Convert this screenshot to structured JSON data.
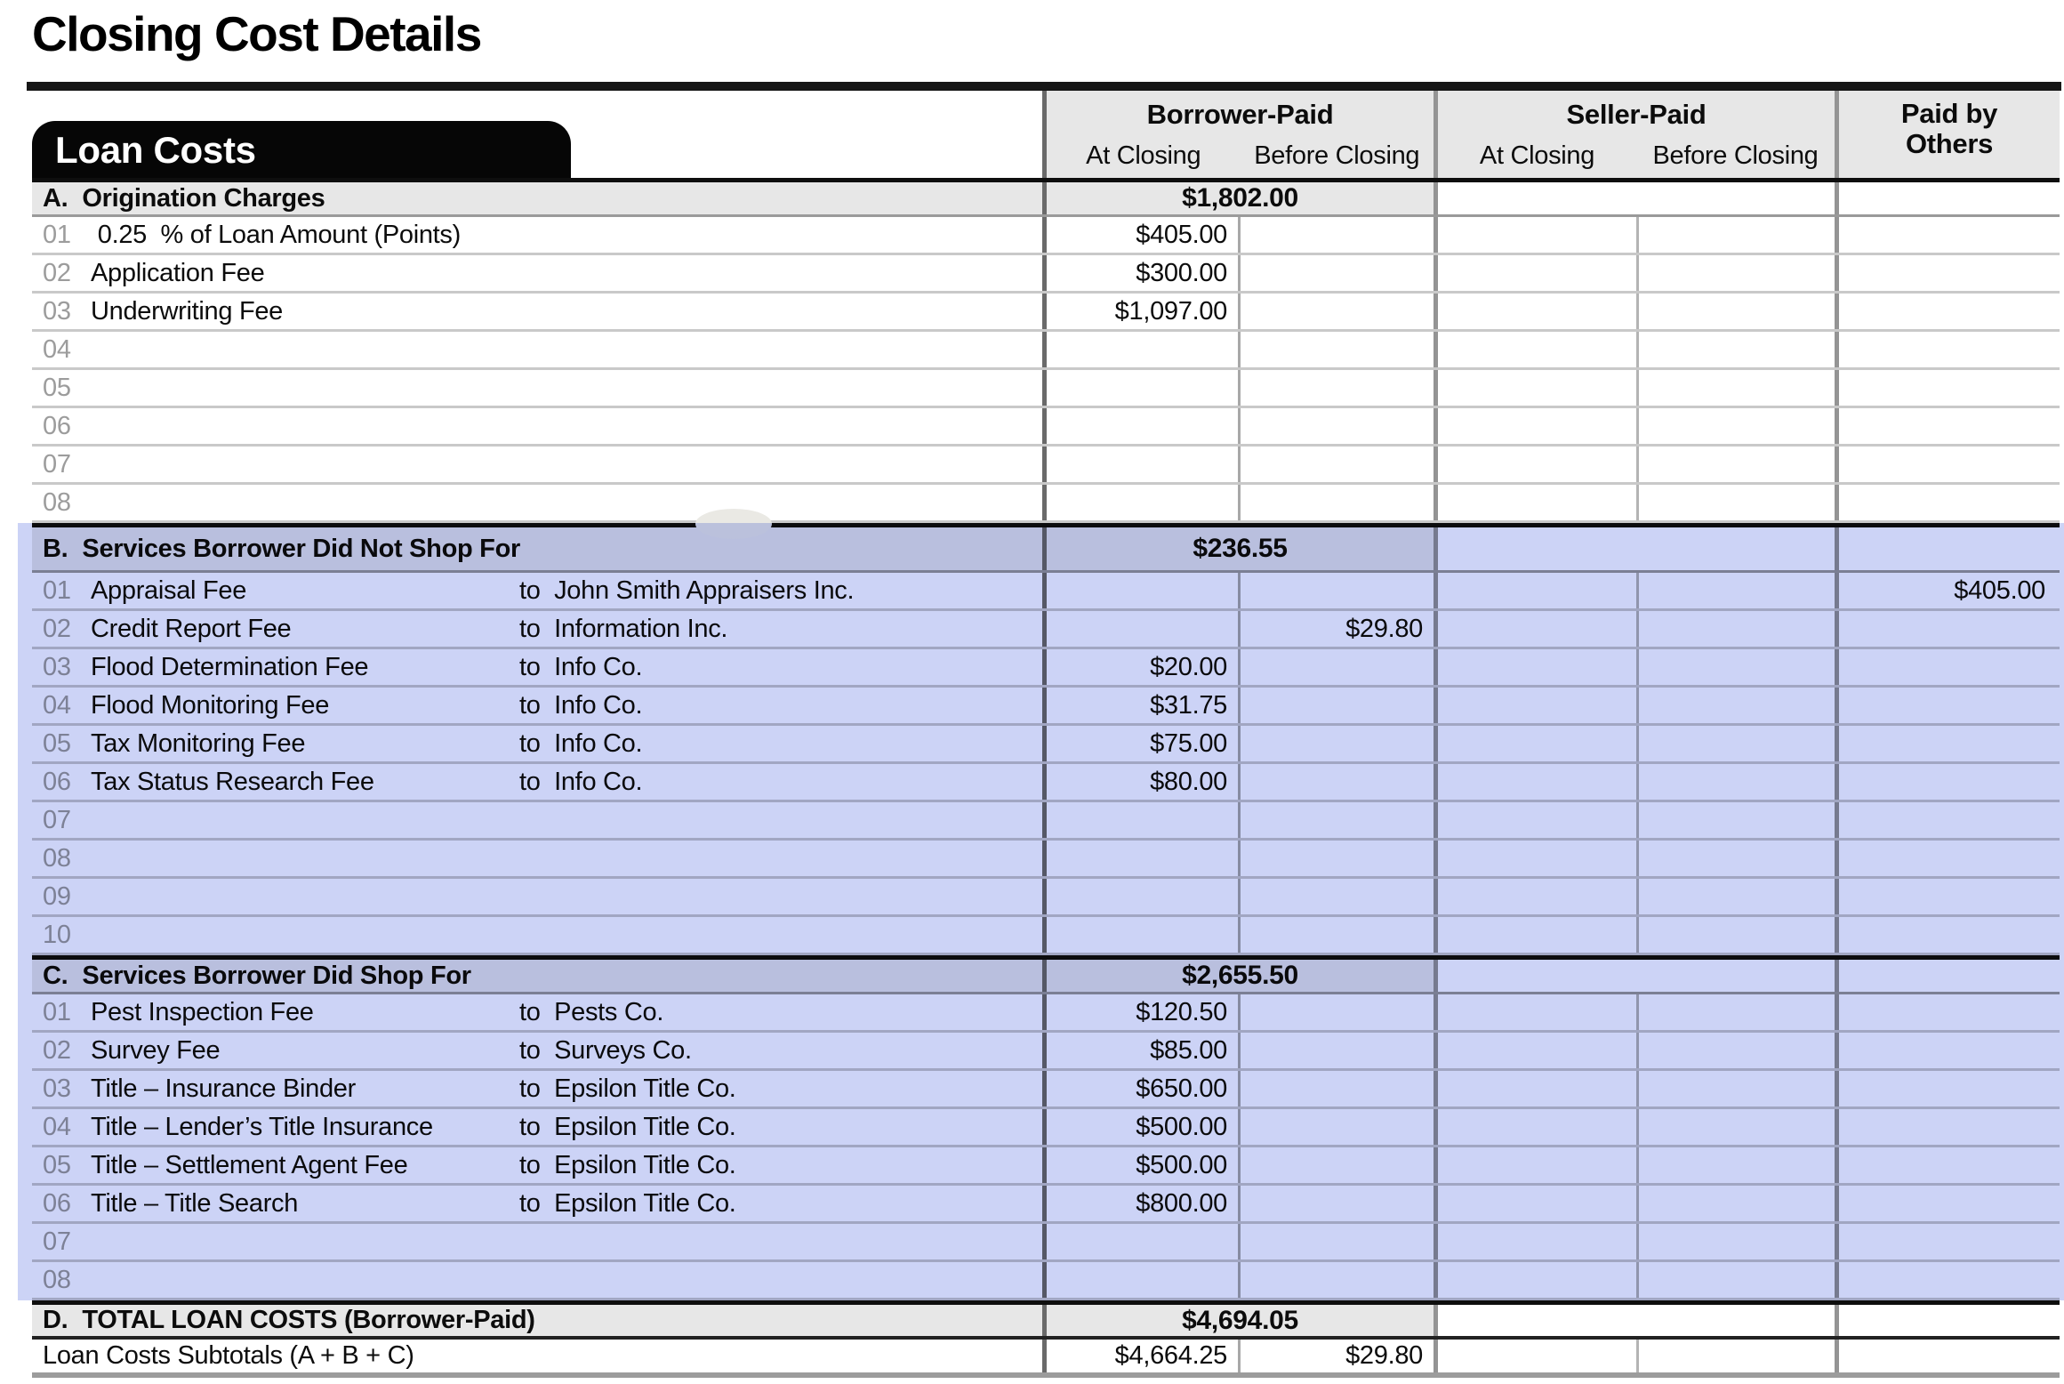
{
  "title": "Closing Cost Details",
  "tab_label": "Loan Costs",
  "columns": {
    "borrower_group": "Borrower-Paid",
    "seller_group": "Seller-Paid",
    "others_group": "Paid by Others",
    "at_closing": "At Closing",
    "before_closing": "Before Closing"
  },
  "sections": [
    {
      "letter": "A.",
      "name": "Origination Charges",
      "total": "$1,802.00",
      "rows": [
        {
          "num": "01",
          "label": " 0.25  % of Loan Amount (Points)",
          "b_at": "$405.00"
        },
        {
          "num": "02",
          "label": "Application Fee",
          "b_at": "$300.00"
        },
        {
          "num": "03",
          "label": "Underwriting Fee",
          "b_at": "$1,097.00"
        },
        {
          "num": "04"
        },
        {
          "num": "05"
        },
        {
          "num": "06"
        },
        {
          "num": "07"
        },
        {
          "num": "08"
        }
      ]
    },
    {
      "letter": "B.",
      "name": "Services Borrower Did Not Shop For",
      "total": "$236.55",
      "rows": [
        {
          "num": "01",
          "label": "Appraisal Fee",
          "payee": "to  John Smith Appraisers Inc.",
          "others": "$405.00"
        },
        {
          "num": "02",
          "label": "Credit Report Fee",
          "payee": "to  Information Inc.",
          "b_before": "$29.80"
        },
        {
          "num": "03",
          "label": "Flood Determination Fee",
          "payee": "to  Info Co.",
          "b_at": "$20.00"
        },
        {
          "num": "04",
          "label": "Flood Monitoring Fee",
          "payee": "to  Info Co.",
          "b_at": "$31.75"
        },
        {
          "num": "05",
          "label": "Tax Monitoring Fee",
          "payee": "to  Info Co.",
          "b_at": "$75.00"
        },
        {
          "num": "06",
          "label": "Tax Status Research Fee",
          "payee": "to  Info Co.",
          "b_at": "$80.00"
        },
        {
          "num": "07"
        },
        {
          "num": "08"
        },
        {
          "num": "09"
        },
        {
          "num": "10"
        }
      ]
    },
    {
      "letter": "C.",
      "name": "Services Borrower Did Shop For",
      "total": "$2,655.50",
      "rows": [
        {
          "num": "01",
          "label": "Pest Inspection Fee",
          "payee": "to  Pests Co.",
          "b_at": "$120.50"
        },
        {
          "num": "02",
          "label": "Survey Fee",
          "payee": "to  Surveys Co.",
          "b_at": "$85.00"
        },
        {
          "num": "03",
          "label": "Title – Insurance Binder",
          "payee": "to  Epsilon Title Co.",
          "b_at": "$650.00"
        },
        {
          "num": "04",
          "label": "Title – Lender’s Title Insurance",
          "payee": "to  Epsilon Title Co.",
          "b_at": "$500.00"
        },
        {
          "num": "05",
          "label": "Title – Settlement Agent Fee",
          "payee": "to  Epsilon Title Co.",
          "b_at": "$500.00"
        },
        {
          "num": "06",
          "label": "Title – Title Search",
          "payee": "to  Epsilon Title Co.",
          "b_at": "$800.00"
        },
        {
          "num": "07"
        },
        {
          "num": "08"
        }
      ]
    },
    {
      "letter": "D.",
      "name": "TOTAL LOAN COSTS (Borrower-Paid)",
      "total": "$4,694.05",
      "rows": []
    }
  ],
  "subtotal": {
    "label": "Loan Costs Subtotals (A + B + C)",
    "at_closing": "$4,664.25",
    "before_closing": "$29.80"
  },
  "colors": {
    "selection_highlight": "#ccd3f6",
    "section_header_gray": "#e7e7e7",
    "grid_line": "#c9c9c9"
  }
}
